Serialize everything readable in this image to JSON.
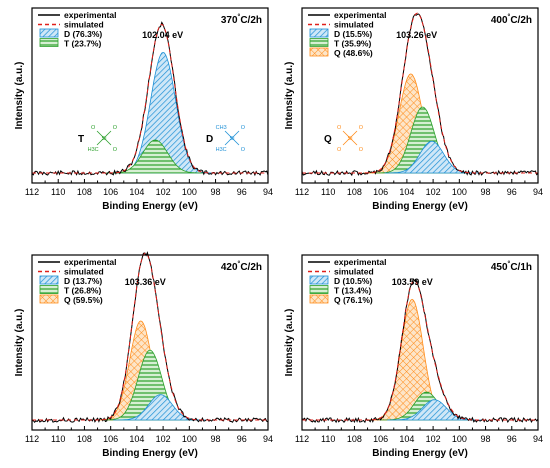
{
  "chart_data": [
    {
      "type": "line",
      "title": "370°C/2h",
      "xlabel": "Binding Energy (eV)",
      "ylabel": "Intensity (a.u.)",
      "xlim": [
        112,
        94
      ],
      "x_ticks": [
        "112",
        "110",
        "108",
        "106",
        "104",
        "102",
        "100",
        "98",
        "96",
        "94"
      ],
      "peak_label": "102.04 eV",
      "peak_position": 102.04,
      "legend": [
        "experimental",
        "simulated",
        "D (76.3%)",
        "T (23.7%)"
      ],
      "components": [
        {
          "name": "D (76.3%)",
          "center": 102.0,
          "width": 0.95,
          "height": 0.95,
          "color": "#1e90d6"
        },
        {
          "name": "T (23.7%)",
          "center": 102.6,
          "width": 0.95,
          "height": 0.26,
          "color": "#2ca02c"
        }
      ],
      "series": [
        {
          "name": "experimental",
          "color": "#000000"
        },
        {
          "name": "simulated",
          "color": "#e0201b"
        }
      ],
      "annotations": {
        "T": {
          "label": "T",
          "atoms": [
            "O",
            "O",
            "O",
            "H3C",
            "Si"
          ],
          "color": "#2ca02c"
        },
        "D": {
          "label": "D",
          "atoms": [
            "CH3",
            "O",
            "O",
            "H3C",
            "Si"
          ],
          "color": "#1e90d6"
        }
      }
    },
    {
      "type": "line",
      "title": "400°C/2h",
      "xlabel": "Binding Energy (eV)",
      "ylabel": "Intensity (a.u.)",
      "xlim": [
        112,
        94
      ],
      "x_ticks": [
        "112",
        "110",
        "108",
        "106",
        "104",
        "102",
        "100",
        "98",
        "96",
        "94"
      ],
      "peak_label": "103.26 eV",
      "peak_position": 103.26,
      "legend": [
        "experimental",
        "simulated",
        "D (15.5%)",
        "T (35.9%)",
        "Q (48.6%)"
      ],
      "components": [
        {
          "name": "D (15.5%)",
          "center": 102.1,
          "width": 0.9,
          "height": 0.25,
          "color": "#1e90d6"
        },
        {
          "name": "T (35.9%)",
          "center": 102.8,
          "width": 0.9,
          "height": 0.52,
          "color": "#2ca02c"
        },
        {
          "name": "Q (48.6%)",
          "center": 103.7,
          "width": 0.9,
          "height": 0.78,
          "color": "#ff8c1a"
        }
      ],
      "series": [
        {
          "name": "experimental",
          "color": "#000000"
        },
        {
          "name": "simulated",
          "color": "#e0201b"
        }
      ],
      "annotations": {
        "Q": {
          "label": "Q",
          "atoms": [
            "O",
            "O",
            "O",
            "O",
            "Si"
          ],
          "color": "#ff8c1a"
        }
      }
    },
    {
      "type": "line",
      "title": "420°C/2h",
      "xlabel": "Binding Energy (eV)",
      "ylabel": "Intensity (a.u.)",
      "xlim": [
        112,
        94
      ],
      "x_ticks": [
        "112",
        "110",
        "108",
        "106",
        "104",
        "102",
        "100",
        "98",
        "96",
        "94"
      ],
      "peak_label": "103.36 eV",
      "peak_position": 103.36,
      "legend": [
        "experimental",
        "simulated",
        "D (13.7%)",
        "T (26.8%)",
        "Q (59.5%)"
      ],
      "components": [
        {
          "name": "D (13.7%)",
          "center": 102.2,
          "width": 0.9,
          "height": 0.2,
          "color": "#1e90d6"
        },
        {
          "name": "T (26.8%)",
          "center": 103.0,
          "width": 0.9,
          "height": 0.55,
          "color": "#2ca02c"
        },
        {
          "name": "Q (59.5%)",
          "center": 103.7,
          "width": 0.85,
          "height": 0.78,
          "color": "#ff8c1a"
        }
      ],
      "series": [
        {
          "name": "experimental",
          "color": "#000000"
        },
        {
          "name": "simulated",
          "color": "#e0201b"
        }
      ]
    },
    {
      "type": "line",
      "title": "450°C/1h",
      "xlabel": "Binding Energy (eV)",
      "ylabel": "Intensity (a.u.)",
      "xlim": [
        112,
        94
      ],
      "x_ticks": [
        "112",
        "110",
        "108",
        "106",
        "104",
        "102",
        "100",
        "98",
        "96",
        "94"
      ],
      "peak_label": "103.59 eV",
      "peak_position": 103.59,
      "legend": [
        "experimental",
        "simulated",
        "D (10.5%)",
        "T (13.4%)",
        "Q (76.1%)"
      ],
      "components": [
        {
          "name": "D (10.5%)",
          "center": 101.9,
          "width": 0.9,
          "height": 0.16,
          "color": "#1e90d6"
        },
        {
          "name": "T (13.4%)",
          "center": 102.5,
          "width": 0.9,
          "height": 0.22,
          "color": "#2ca02c"
        },
        {
          "name": "Q (76.1%)",
          "center": 103.6,
          "width": 0.85,
          "height": 0.95,
          "color": "#ff8c1a"
        }
      ],
      "series": [
        {
          "name": "experimental",
          "color": "#000000"
        },
        {
          "name": "simulated",
          "color": "#e0201b"
        }
      ]
    }
  ]
}
